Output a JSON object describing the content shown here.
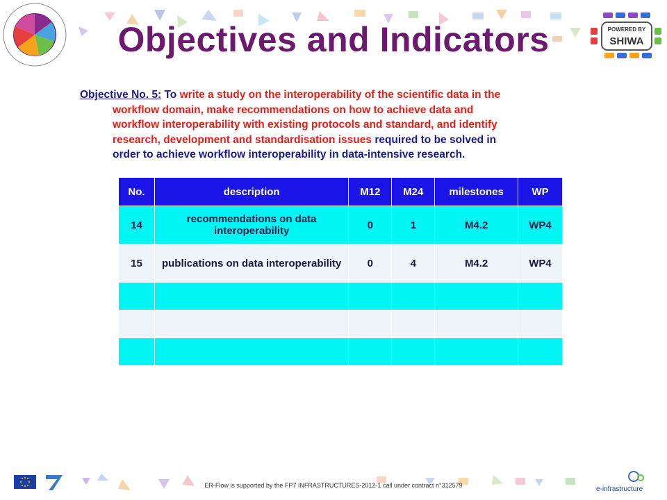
{
  "header": {
    "title": "Objectives and Indicators",
    "logo_left_text": "flowER-flowER-flowER-flowER-flowER-flowER-flowER-",
    "logo_right_line1": "POWERED BY",
    "logo_right_line2": "SHIWA"
  },
  "objective": {
    "lead": "Objective No. 5:",
    "seg1": " To ",
    "seg2": "write a study on the interoperability of the scientific data in the",
    "line2": "workflow domain, make recommendations on how to achieve data and",
    "line3": "workflow interoperability with existing protocols and standard, and identify",
    "line4a": "research, development and standardisation issues ",
    "line4b": "required to be solved in",
    "line5": "order to achieve workflow interoperability in data-intensive research."
  },
  "table": {
    "headers": [
      "No.",
      "description",
      "M12",
      "M24",
      "milestones",
      "WP"
    ],
    "rows": [
      [
        "14",
        "recommendations on data interoperability",
        "0",
        "1",
        "M4.2",
        "WP4"
      ],
      [
        "15",
        "publications on data interoperability",
        "0",
        "4",
        "M4.2",
        "WP4"
      ],
      [
        "",
        "",
        "",
        "",
        "",
        ""
      ],
      [
        "",
        "",
        "",
        "",
        "",
        ""
      ],
      [
        "",
        "",
        "",
        "",
        "",
        ""
      ]
    ]
  },
  "footer": {
    "text": "ER-Flow is supported by the FP7 INFRASTRUCTURES-2012-1 call under contract n°312579",
    "einfra_label": "e-infrastructure"
  },
  "colors": {
    "title": "#6b1a6e",
    "header_bg": "#1a14e6",
    "row_cyan": "#00f5f5",
    "row_light": "#eef4f8"
  }
}
